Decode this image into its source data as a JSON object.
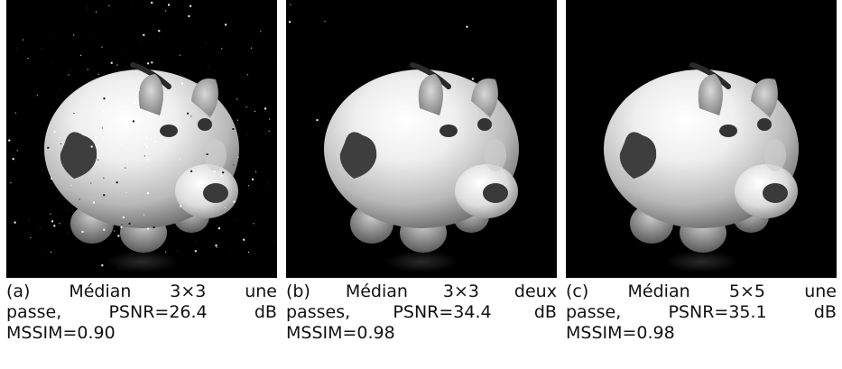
{
  "figure": {
    "panels": [
      {
        "id": "a",
        "noise_level": "high",
        "caption_lines": [
          [
            "(a)",
            "Médian",
            "3×3",
            "une"
          ],
          [
            "passe,",
            "PSNR=26.4",
            "dB"
          ],
          [
            "MSSIM=0.90"
          ]
        ]
      },
      {
        "id": "b",
        "noise_level": "low",
        "caption_lines": [
          [
            "(b)",
            "Médian",
            "3×3",
            "deux"
          ],
          [
            "passes,",
            "PSNR=34.4",
            "dB"
          ],
          [
            "MSSIM=0.98"
          ]
        ]
      },
      {
        "id": "c",
        "noise_level": "none",
        "caption_lines": [
          [
            "(c)",
            "Médian",
            "5×5",
            "une"
          ],
          [
            "passe,",
            "PSNR=35.1",
            "dB"
          ],
          [
            "MSSIM=0.98"
          ]
        ]
      }
    ]
  }
}
